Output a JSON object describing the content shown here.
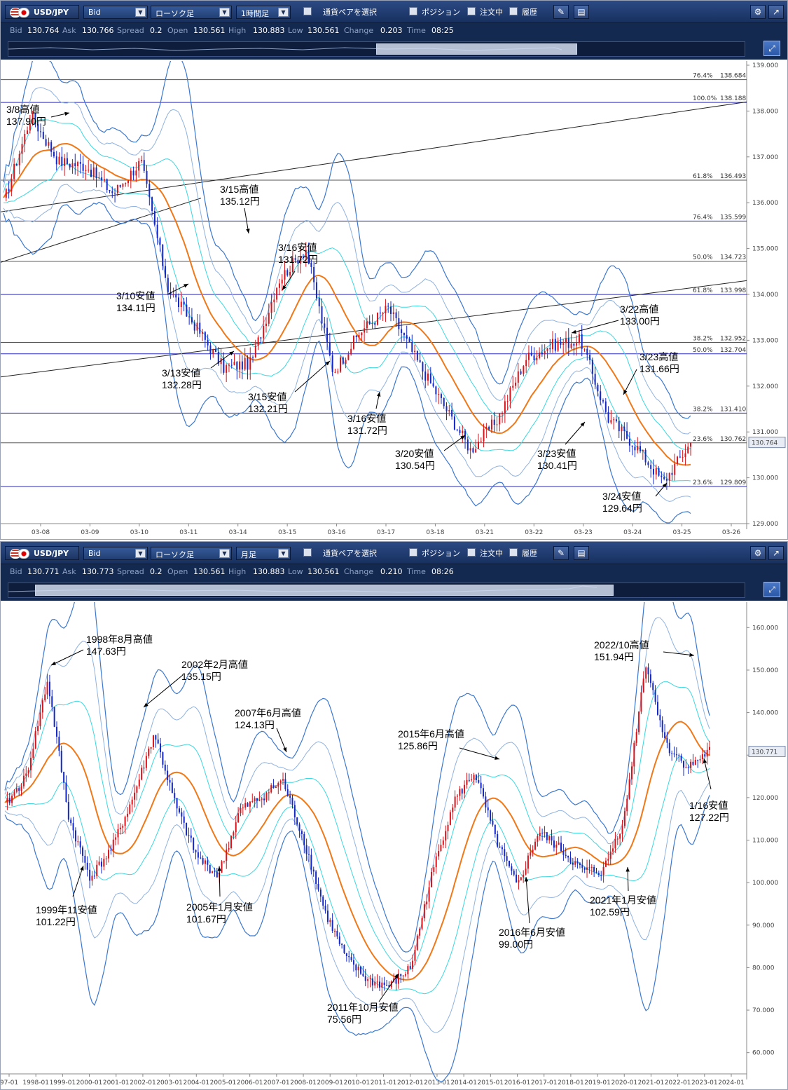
{
  "top": {
    "toolbar": {
      "symbol": "USD/JPY",
      "price_type": "Bid",
      "chart_type": "ローソク足",
      "timeframe": "1時間足",
      "pair_select": "通貨ペアを選択",
      "position": "ポジション",
      "orders": "注文中",
      "history": "履歴"
    },
    "info": {
      "bid_label": "Bid",
      "bid": "130.764",
      "ask_label": "Ask",
      "ask": "130.766",
      "spread_label": "Spread",
      "spread": "0.2",
      "open_label": "Open",
      "open": "130.561",
      "high_label": "High",
      "high": "130.883",
      "low_label": "Low",
      "low": "130.561",
      "change_label": "Change",
      "change": "0.203",
      "time_label": "Time",
      "time": "08:25"
    },
    "price_badge": "130.764",
    "y_ticks": [
      "139.000",
      "138.000",
      "137.000",
      "136.000",
      "135.000",
      "134.000",
      "133.000",
      "132.000",
      "131.000",
      "130.000",
      "129.000"
    ],
    "x_ticks": [
      "03-08",
      "03-09",
      "03-10",
      "03-11",
      "03-14",
      "03-15",
      "03-16",
      "03-17",
      "03-18",
      "03-21",
      "03-22",
      "03-23",
      "03-24",
      "03-25",
      "03-26"
    ],
    "fib_levels": [
      {
        "pct": "76.4%",
        "val": "138.684"
      },
      {
        "pct": "100.0%",
        "val": "138.188"
      },
      {
        "pct": "61.8%",
        "val": "136.493"
      },
      {
        "pct": "76.4%",
        "val": "135.599"
      },
      {
        "pct": "50.0%",
        "val": "134.723"
      },
      {
        "pct": "61.8%",
        "val": "133.998"
      },
      {
        "pct": "38.2%",
        "val": "132.952"
      },
      {
        "pct": "50.0%",
        "val": "132.704"
      },
      {
        "pct": "38.2%",
        "val": "131.410"
      },
      {
        "pct": "23.6%",
        "val": "130.762"
      },
      {
        "pct": "23.6%",
        "val": "129.809"
      }
    ],
    "annotations": [
      {
        "l1": "3/8高値",
        "l2": "137.90円"
      },
      {
        "l1": "3/15高値",
        "l2": "135.12円"
      },
      {
        "l1": "3/16安値",
        "l2": "131.72円"
      },
      {
        "l1": "3/10安値",
        "l2": "134.11円"
      },
      {
        "l1": "3/13安値",
        "l2": "132.28円"
      },
      {
        "l1": "3/15安値",
        "l2": "132.21円"
      },
      {
        "l1": "3/16安値",
        "l2": "131.72円"
      },
      {
        "l1": "3/20安値",
        "l2": "130.54円"
      },
      {
        "l1": "3/22高値",
        "l2": "133.00円"
      },
      {
        "l1": "3/23高値",
        "l2": "131.66円"
      },
      {
        "l1": "3/23安値",
        "l2": "130.41円"
      },
      {
        "l1": "3/24安値",
        "l2": "129.64円"
      }
    ]
  },
  "bottom": {
    "toolbar": {
      "symbol": "USD/JPY",
      "price_type": "Bid",
      "chart_type": "ローソク足",
      "timeframe": "月足",
      "pair_select": "通貨ペアを選択",
      "position": "ポジション",
      "orders": "注文中",
      "history": "履歴"
    },
    "info": {
      "bid_label": "Bid",
      "bid": "130.771",
      "ask_label": "Ask",
      "ask": "130.773",
      "spread_label": "Spread",
      "spread": "0.2",
      "open_label": "Open",
      "open": "130.561",
      "high_label": "High",
      "high": "130.883",
      "low_label": "Low",
      "low": "130.561",
      "change_label": "Change",
      "change": "0.210",
      "time_label": "Time",
      "time": "08:26"
    },
    "price_badge": "130.771",
    "y_ticks": [
      "160.000",
      "150.000",
      "140.000",
      "130.000",
      "120.000",
      "110.000",
      "100.000",
      "90.000",
      "80.000",
      "70.000",
      "60.000"
    ],
    "x_ticks": [
      "97-01",
      "1998-01",
      "1999-01",
      "2000-01",
      "2001-01",
      "2002-01",
      "2003-01",
      "2004-01",
      "2005-01",
      "2006-01",
      "2007-01",
      "2008-01",
      "2009-01",
      "2010-01",
      "2011-01",
      "2012-01",
      "2013-01",
      "2014-01",
      "2015-01",
      "2016-01",
      "2017-01",
      "2018-01",
      "2019-01",
      "2020-01",
      "2021-01",
      "2022-01",
      "2023-01",
      "2024-01"
    ],
    "annotations": [
      {
        "l1": "1998年8月高値",
        "l2": "147.63円"
      },
      {
        "l1": "2002年2月高値",
        "l2": "135.15円"
      },
      {
        "l1": "2007年6月高値",
        "l2": "124.13円"
      },
      {
        "l1": "2015年6月高値",
        "l2": "125.86円"
      },
      {
        "l1": "2022/10高値",
        "l2": "151.94円"
      },
      {
        "l1": "1/16安値",
        "l2": "127.22円"
      },
      {
        "l1": "1999年11安値",
        "l2": "101.22円"
      },
      {
        "l1": "2005年1月安値",
        "l2": "101.67円"
      },
      {
        "l1": "2011年10月安値",
        "l2": "75.56円"
      },
      {
        "l1": "2016年6月安値",
        "l2": "99.00円"
      },
      {
        "l1": "2021年1月安値",
        "l2": "102.59円"
      }
    ]
  },
  "chart_data": [
    {
      "type": "candlestick",
      "title": "",
      "timeframe": "1時間足",
      "ylim": [
        129.0,
        139.0
      ],
      "x": [
        "03-08",
        "03-09",
        "03-10",
        "03-11",
        "03-14",
        "03-15",
        "03-16",
        "03-17",
        "03-18",
        "03-21",
        "03-22",
        "03-23",
        "03-24",
        "03-25"
      ],
      "close_path": [
        136.0,
        137.9,
        136.9,
        136.8,
        136.2,
        136.9,
        134.1,
        133.3,
        132.4,
        132.5,
        134.3,
        135.0,
        132.3,
        133.2,
        133.7,
        132.6,
        131.6,
        130.6,
        131.3,
        132.6,
        132.9,
        133.0,
        131.3,
        130.7,
        129.9,
        130.76
      ],
      "key_levels": [
        {
          "label": "3/8高値",
          "value": 137.9
        },
        {
          "label": "3/10安値",
          "value": 134.11
        },
        {
          "label": "3/13安値",
          "value": 132.28
        },
        {
          "label": "3/15高値",
          "value": 135.12
        },
        {
          "label": "3/15安値",
          "value": 132.21
        },
        {
          "label": "3/16安値",
          "value": 131.72
        },
        {
          "label": "3/20安値",
          "value": 130.54
        },
        {
          "label": "3/22高値",
          "value": 133.0
        },
        {
          "label": "3/23高値",
          "value": 131.66
        },
        {
          "label": "3/23安値",
          "value": 130.41
        },
        {
          "label": "3/24安値",
          "value": 129.64
        }
      ]
    },
    {
      "type": "candlestick",
      "title": "",
      "timeframe": "月足",
      "ylim": [
        60.0,
        160.0
      ],
      "x": [
        "1997",
        "1998",
        "1999",
        "2000",
        "2001",
        "2002",
        "2003",
        "2004",
        "2005",
        "2006",
        "2007",
        "2008",
        "2009",
        "2010",
        "2011",
        "2012",
        "2013",
        "2014",
        "2015",
        "2016",
        "2017",
        "2018",
        "2019",
        "2020",
        "2021",
        "2022",
        "2023"
      ],
      "close_path": [
        118,
        125,
        147.6,
        115,
        101.2,
        108,
        120,
        135.2,
        118,
        106,
        101.7,
        117,
        120,
        124.1,
        110,
        93,
        82,
        77,
        75.6,
        80,
        102,
        119,
        125.9,
        110,
        99,
        112,
        108,
        103,
        102.6,
        115,
        151.9,
        132,
        127.2,
        131
      ],
      "key_levels": [
        {
          "label": "1998年8月高値",
          "value": 147.63
        },
        {
          "label": "1999年11安値",
          "value": 101.22
        },
        {
          "label": "2002年2月高値",
          "value": 135.15
        },
        {
          "label": "2005年1月安値",
          "value": 101.67
        },
        {
          "label": "2007年6月高値",
          "value": 124.13
        },
        {
          "label": "2011年10月安値",
          "value": 75.56
        },
        {
          "label": "2015年6月高値",
          "value": 125.86
        },
        {
          "label": "2016年6月安値",
          "value": 99.0
        },
        {
          "label": "2021年1月安値",
          "value": 102.59
        },
        {
          "label": "2022/10高値",
          "value": 151.94
        },
        {
          "label": "1/16安値",
          "value": 127.22
        }
      ]
    }
  ],
  "colors": {
    "toolbar": "#1f3a70",
    "bull": "#d8141c",
    "bear": "#1428c8",
    "ma": "#f07818",
    "bb_outer": "#3b78d0",
    "bb_mid": "#8fb2e0",
    "bb_inner": "#3ad8e0",
    "fib_major": "#2c2ccc",
    "fib_minor": "#555555",
    "trend": "#222222"
  }
}
